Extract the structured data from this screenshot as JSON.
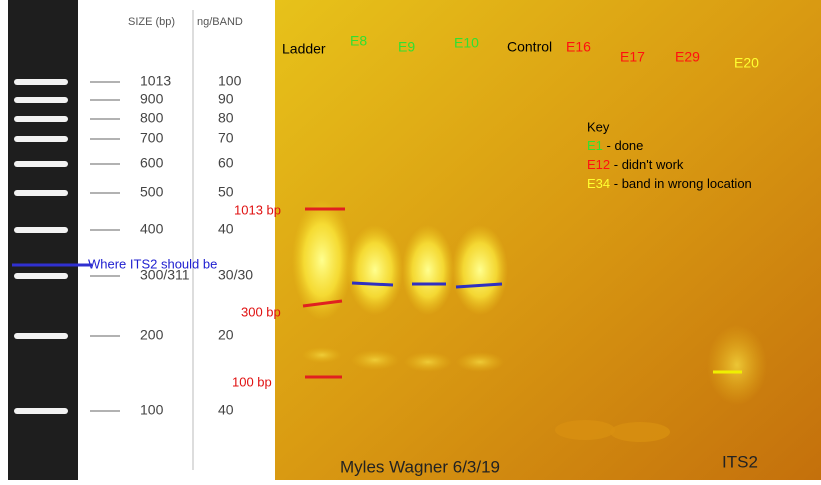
{
  "ladder_panel": {
    "size_header": "SIZE (bp)",
    "ng_header": "ng/BAND",
    "bands": [
      {
        "size": "1013",
        "ng": "100"
      },
      {
        "size": "900",
        "ng": "90"
      },
      {
        "size": "800",
        "ng": "80"
      },
      {
        "size": "700",
        "ng": "70"
      },
      {
        "size": "600",
        "ng": "60"
      },
      {
        "size": "500",
        "ng": "50"
      },
      {
        "size": "400",
        "ng": "40"
      },
      {
        "size": "300/311",
        "ng": "30/30"
      },
      {
        "size": "200",
        "ng": "20"
      },
      {
        "size": "100",
        "ng": "40"
      }
    ],
    "annotation": "Where ITS2 should be"
  },
  "gel": {
    "lanes": [
      {
        "label": "Ladder",
        "status": "black"
      },
      {
        "label": "E8",
        "status": "green"
      },
      {
        "label": "E9",
        "status": "green"
      },
      {
        "label": "E10",
        "status": "green"
      },
      {
        "label": "Control",
        "status": "black"
      },
      {
        "label": "E16",
        "status": "red"
      },
      {
        "label": "E17",
        "status": "red"
      },
      {
        "label": "E29",
        "status": "red"
      },
      {
        "label": "E20",
        "status": "yellow"
      }
    ],
    "markers": [
      "1013 bp",
      "300 bp",
      "100 bp"
    ],
    "key": {
      "title": "Key",
      "items": [
        {
          "code": "E1",
          "text": " - done",
          "status": "green"
        },
        {
          "code": "E12",
          "text": " - didn't work",
          "status": "red"
        },
        {
          "code": "E34",
          "text": " - band in wrong location",
          "status": "yellow"
        }
      ]
    },
    "author": "Myles Wagner 6/3/19",
    "caption": "ITS2"
  }
}
